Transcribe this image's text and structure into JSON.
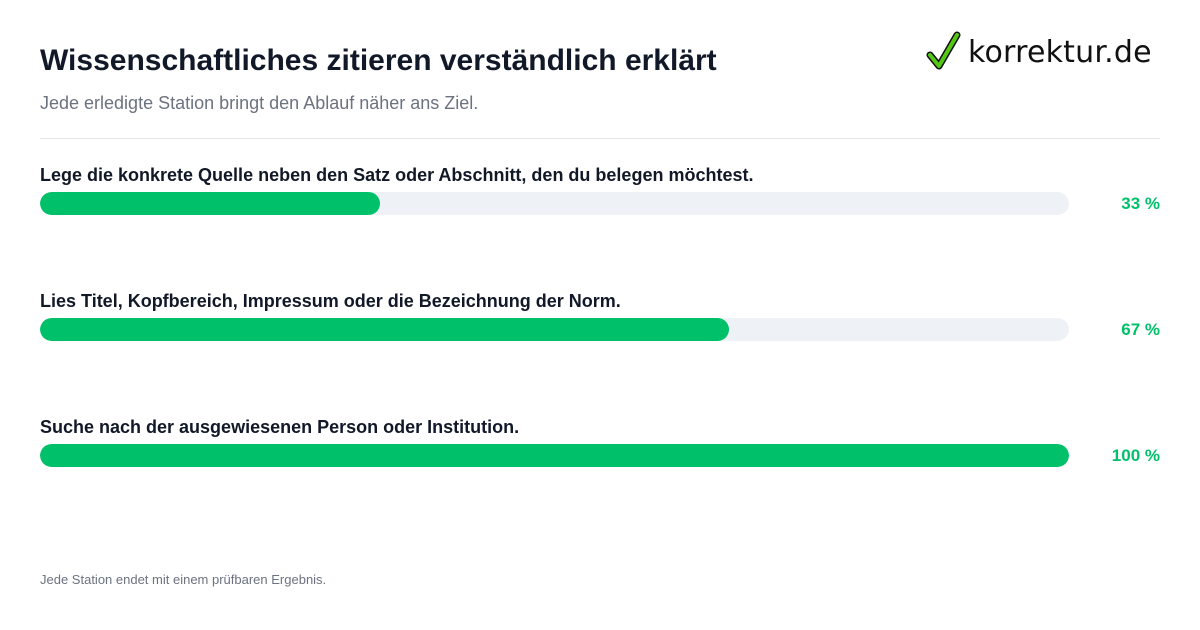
{
  "header": {
    "title": "Wissenschaftliches zitieren verständlich erklärt",
    "subtitle": "Jede erledigte Station bringt den Ablauf näher ans Ziel.",
    "logo_text": "korrektur.de",
    "logo_icon": "checkmark-icon"
  },
  "steps": [
    {
      "label": "Lege die konkrete Quelle neben den Satz oder Abschnitt, den du belegen möchtest.",
      "progress": 0.33,
      "percent_label": "33 %"
    },
    {
      "label": "Lies Titel, Kopfbereich, Impressum oder die Bezeichnung der Norm.",
      "progress": 0.67,
      "percent_label": "67 %"
    },
    {
      "label": "Suche nach der ausgewiesenen Person oder Institution.",
      "progress": 1.0,
      "percent_label": "100 %"
    }
  ],
  "footer": {
    "note": "Jede Station endet mit einem prüfbaren Ergebnis."
  },
  "colors": {
    "accent": "#00c16a",
    "track": "#eef2f7",
    "title": "#111827",
    "muted": "#6b7280",
    "logo_check": "#55c713"
  }
}
